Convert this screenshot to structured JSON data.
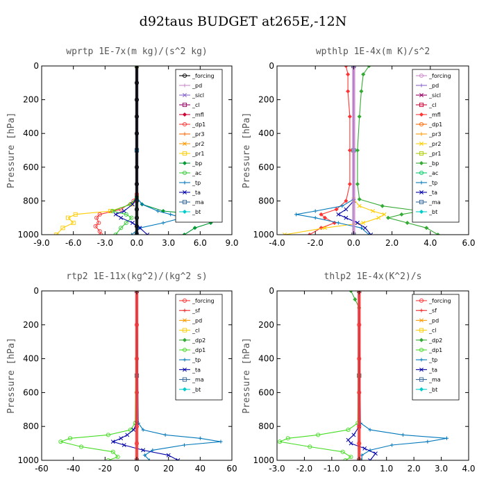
{
  "figure": {
    "title": "d92taus  BUDGET at265E,-12N"
  },
  "chart_data": [
    {
      "type": "line",
      "title": "wprtp  1E-7x(m kg)/(s^2 kg)",
      "ylabel": "Pressure [hPa]",
      "xlim": [
        -9,
        9
      ],
      "ylim": [
        1000,
        0
      ],
      "y_reversed": true,
      "xticks": [
        "-9.0",
        "-6.0",
        "-3.0",
        "0.0",
        "3.0",
        "6.0",
        "9.0"
      ],
      "yticks": [
        "0",
        "200",
        "400",
        "600",
        "800",
        "1000"
      ],
      "legend_placement": "top-right",
      "series": [
        {
          "name": "_forcing",
          "color": "#000000",
          "y": [
            0,
            100,
            200,
            300,
            400,
            500,
            600,
            700,
            800,
            850,
            900,
            950,
            1000
          ],
          "x": [
            0,
            0,
            0,
            0,
            0,
            0,
            0,
            0,
            0,
            0,
            0,
            0,
            0
          ]
        },
        {
          "name": "_pd",
          "color": "#cc88cc",
          "y": [
            0,
            500,
            1000
          ],
          "x": [
            0,
            0,
            0
          ]
        },
        {
          "name": "_sicl",
          "color": "#8866cc",
          "y": [
            0,
            500,
            1000
          ],
          "x": [
            0,
            0,
            0
          ]
        },
        {
          "name": "_cl",
          "color": "#990066",
          "y": [
            0,
            500,
            1000
          ],
          "x": [
            0,
            0,
            0
          ]
        },
        {
          "name": "_mfl",
          "color": "#cc0033",
          "y": [
            0,
            500,
            1000
          ],
          "x": [
            0,
            0,
            0
          ]
        },
        {
          "name": "_dp1",
          "color": "#ff3333",
          "y": [
            0,
            760,
            800,
            850,
            880,
            900,
            930,
            950,
            980,
            1000
          ],
          "x": [
            0,
            0,
            -0.3,
            -1.5,
            -3.5,
            -3.8,
            -3.6,
            -3.9,
            -3.5,
            -3.4
          ]
        },
        {
          "name": "_pr3",
          "color": "#ff6600",
          "y": [
            0,
            500,
            1000
          ],
          "x": [
            0,
            0,
            0
          ]
        },
        {
          "name": "_pr2",
          "color": "#ff9900",
          "y": [
            0,
            500,
            1000
          ],
          "x": [
            0,
            0,
            0
          ]
        },
        {
          "name": "_pr1",
          "color": "#ffcc00",
          "y": [
            0,
            780,
            820,
            860,
            880,
            900,
            930,
            960,
            1000
          ],
          "x": [
            0,
            0,
            -0.5,
            -2.5,
            -5.8,
            -6.5,
            -6.0,
            -7.0,
            -7.6
          ]
        },
        {
          "name": "_bp",
          "color": "#009933",
          "y": [
            0,
            780,
            820,
            860,
            880,
            900,
            930,
            960,
            1000
          ],
          "x": [
            0,
            0,
            0.5,
            2.5,
            6.0,
            7.8,
            7.0,
            5.5,
            4.5
          ]
        },
        {
          "name": "_ac",
          "color": "#33cc33",
          "y": [
            0,
            780,
            820,
            860,
            880,
            900,
            930,
            960,
            1000
          ],
          "x": [
            0,
            0,
            -0.6,
            -2.3,
            -1.0,
            -0.5,
            -1.0,
            -1.5,
            -2.0
          ]
        },
        {
          "name": "_tp",
          "color": "#0077bb",
          "y": [
            0,
            780,
            820,
            860,
            880,
            900,
            930,
            960,
            1000
          ],
          "x": [
            0,
            0,
            0.5,
            2.0,
            3.2,
            4.3,
            2.5,
            0.3,
            -0.5
          ]
        },
        {
          "name": "_ta",
          "color": "#0000aa",
          "y": [
            0,
            780,
            820,
            860,
            880,
            900,
            930,
            960,
            1000
          ],
          "x": [
            0,
            0,
            -0.4,
            -1.2,
            -2.0,
            -1.5,
            -0.4,
            0.3,
            1.0
          ]
        },
        {
          "name": "_ma",
          "color": "#336699",
          "y": [
            0,
            500,
            1000
          ],
          "x": [
            0,
            0,
            0
          ]
        },
        {
          "name": "_bt",
          "color": "#00cccc",
          "y": [
            0,
            500,
            1000
          ],
          "x": [
            0,
            0,
            0
          ]
        }
      ]
    },
    {
      "type": "line",
      "title": "wpthlp  1E-4x(m K)/s^2",
      "ylabel": "Pressure [hPa]",
      "xlim": [
        -4,
        6
      ],
      "ylim": [
        1000,
        0
      ],
      "y_reversed": true,
      "xticks": [
        "-4.0",
        "-2.0",
        "0.0",
        "2.0",
        "4.0",
        "6.0"
      ],
      "yticks": [
        "0",
        "200",
        "400",
        "600",
        "800",
        "1000"
      ],
      "legend_placement": "top-right",
      "series": [
        {
          "name": "_forcing",
          "color": "#cc88cc",
          "y": [
            0,
            500,
            1000
          ],
          "x": [
            0,
            0,
            0
          ]
        },
        {
          "name": "_pd",
          "color": "#8866cc",
          "y": [
            0,
            500,
            1000
          ],
          "x": [
            0,
            0,
            0
          ]
        },
        {
          "name": "_sicl",
          "color": "#990066",
          "y": [
            0,
            500,
            1000
          ],
          "x": [
            0,
            0,
            0
          ]
        },
        {
          "name": "_cl",
          "color": "#cc0033",
          "y": [
            0,
            500,
            1000
          ],
          "x": [
            0,
            0,
            0
          ]
        },
        {
          "name": "_mfl",
          "color": "#ff3333",
          "y": [
            0,
            50,
            150,
            300,
            500,
            700,
            800,
            850,
            880,
            900,
            930,
            960,
            1000
          ],
          "x": [
            -0.4,
            -0.3,
            -0.3,
            -0.2,
            -0.2,
            -0.2,
            -0.4,
            -0.9,
            -1.7,
            -1.5,
            -1.0,
            -1.7,
            -2.3
          ]
        },
        {
          "name": "_dp1",
          "color": "#ff6600",
          "y": [
            0,
            500,
            1000
          ],
          "x": [
            0,
            0,
            0
          ]
        },
        {
          "name": "_pr3",
          "color": "#ff9900",
          "y": [
            0,
            500,
            1000
          ],
          "x": [
            0,
            0,
            0
          ]
        },
        {
          "name": "_pr2",
          "color": "#ffcc00",
          "y": [
            0,
            790,
            830,
            860,
            880,
            900,
            930,
            960,
            1000
          ],
          "x": [
            0,
            0,
            0.3,
            1.0,
            1.6,
            1.3,
            0.5,
            -1.5,
            -3.6
          ]
        },
        {
          "name": "_pr1",
          "color": "#aacc00",
          "y": [
            0,
            500,
            1000
          ],
          "x": [
            0,
            0,
            0
          ]
        },
        {
          "name": "_bp",
          "color": "#33aa33",
          "y": [
            0,
            50,
            150,
            300,
            500,
            700,
            790,
            830,
            860,
            880,
            900,
            930,
            960,
            1000
          ],
          "x": [
            0.8,
            0.5,
            0.4,
            0.3,
            0.2,
            0.2,
            0.3,
            1.5,
            3.5,
            2.5,
            1.8,
            2.8,
            3.8,
            4.4
          ]
        },
        {
          "name": "_ac",
          "color": "#00cc66",
          "y": [
            0,
            500,
            1000
          ],
          "x": [
            0,
            0,
            0
          ]
        },
        {
          "name": "_tp",
          "color": "#0077bb",
          "y": [
            0,
            790,
            830,
            860,
            880,
            900,
            930,
            960,
            1000
          ],
          "x": [
            0,
            0,
            -0.6,
            -2.0,
            -3.0,
            -2.0,
            -0.8,
            0.4,
            0.8
          ]
        },
        {
          "name": "_ta",
          "color": "#0000aa",
          "y": [
            0,
            800,
            850,
            880,
            900,
            930,
            960,
            1000
          ],
          "x": [
            0,
            0,
            -0.4,
            -0.8,
            -0.4,
            0.2,
            0.6,
            0.9
          ]
        },
        {
          "name": "_ma",
          "color": "#336699",
          "y": [
            0,
            500,
            1000
          ],
          "x": [
            0,
            0,
            0
          ]
        },
        {
          "name": "_bt",
          "color": "#00cccc",
          "y": [
            0,
            500,
            1000
          ],
          "x": [
            0,
            0,
            0
          ]
        }
      ]
    },
    {
      "type": "line",
      "title": "rtp2  1E-11x(kg^2)/(kg^2 s)",
      "ylabel": "Pressure [hPa]",
      "xlim": [
        -60,
        60
      ],
      "ylim": [
        1000,
        0
      ],
      "y_reversed": true,
      "xticks": [
        "-60",
        "-40",
        "-20",
        "0",
        "20",
        "40",
        "60"
      ],
      "yticks": [
        "0",
        "200",
        "400",
        "600",
        "800",
        "1000"
      ],
      "legend_placement": "top-right",
      "series": [
        {
          "name": "_forcing",
          "color": "#ff3333",
          "y": [
            0,
            200,
            400,
            600,
            800,
            900,
            1000
          ],
          "x": [
            0,
            0,
            0,
            0,
            0,
            0,
            0
          ]
        },
        {
          "name": "_sf",
          "color": "#ee2222",
          "y": [
            0,
            500,
            1000
          ],
          "x": [
            0,
            0,
            0
          ]
        },
        {
          "name": "_pd",
          "color": "#ff9900",
          "y": [
            0,
            500,
            1000
          ],
          "x": [
            0,
            0,
            0
          ]
        },
        {
          "name": "_cl",
          "color": "#ffcc00",
          "y": [
            0,
            500,
            1000
          ],
          "x": [
            0,
            0,
            0
          ]
        },
        {
          "name": "_dp2",
          "color": "#33aa33",
          "y": [
            0,
            500,
            1000
          ],
          "x": [
            0,
            0,
            0
          ]
        },
        {
          "name": "_dp1",
          "color": "#44dd22",
          "y": [
            0,
            780,
            820,
            850,
            870,
            890,
            920,
            950,
            980,
            1000
          ],
          "x": [
            0,
            -1,
            -4,
            -18,
            -42,
            -48,
            -35,
            -15,
            -12,
            -18
          ]
        },
        {
          "name": "_tp",
          "color": "#0077bb",
          "y": [
            0,
            780,
            820,
            850,
            870,
            890,
            910,
            940,
            970,
            1000
          ],
          "x": [
            0,
            1,
            4,
            18,
            40,
            53,
            30,
            10,
            5,
            8
          ]
        },
        {
          "name": "_ta",
          "color": "#0000aa",
          "y": [
            0,
            780,
            820,
            850,
            870,
            890,
            910,
            940,
            970,
            1000
          ],
          "x": [
            0,
            0,
            -2,
            -6,
            -10,
            -15,
            -8,
            4,
            20,
            26
          ]
        },
        {
          "name": "_ma",
          "color": "#336699",
          "y": [
            0,
            500,
            1000
          ],
          "x": [
            0,
            0,
            0
          ]
        },
        {
          "name": "_bt",
          "color": "#00cccc",
          "y": [
            0,
            500,
            1000
          ],
          "x": [
            0,
            0,
            0
          ]
        }
      ]
    },
    {
      "type": "line",
      "title": "thlp2  1E-4x(K^2)/s",
      "ylabel": "Pressure [hPa]",
      "xlim": [
        -3,
        4
      ],
      "ylim": [
        1000,
        0
      ],
      "y_reversed": true,
      "xticks": [
        "-3.0",
        "-2.0",
        "-1.0",
        "0.0",
        "1.0",
        "2.0",
        "3.0",
        "4.0"
      ],
      "yticks": [
        "0",
        "200",
        "400",
        "600",
        "800",
        "1000"
      ],
      "legend_placement": "top-right",
      "series": [
        {
          "name": "_forcing",
          "color": "#ff3333",
          "y": [
            0,
            200,
            400,
            600,
            800,
            900,
            1000
          ],
          "x": [
            0,
            0,
            0,
            0,
            0,
            0,
            0
          ]
        },
        {
          "name": "_sf",
          "color": "#ee2222",
          "y": [
            0,
            500,
            1000
          ],
          "x": [
            0,
            0,
            0
          ]
        },
        {
          "name": "_pd",
          "color": "#ff9900",
          "y": [
            0,
            500,
            1000
          ],
          "x": [
            0,
            0,
            0
          ]
        },
        {
          "name": "_cl",
          "color": "#ffcc00",
          "y": [
            0,
            500,
            1000
          ],
          "x": [
            0,
            0,
            0
          ]
        },
        {
          "name": "_dp2",
          "color": "#33aa33",
          "y": [
            0,
            50,
            100,
            500,
            1000
          ],
          "x": [
            -0.3,
            -0.15,
            0,
            0,
            0
          ]
        },
        {
          "name": "_dp1",
          "color": "#44dd22",
          "y": [
            0,
            780,
            820,
            850,
            870,
            890,
            920,
            950,
            980,
            1000
          ],
          "x": [
            0,
            -0.05,
            -0.4,
            -1.5,
            -2.6,
            -2.9,
            -1.8,
            -0.6,
            -0.3,
            -0.5
          ]
        },
        {
          "name": "_tp",
          "color": "#0077bb",
          "y": [
            0,
            780,
            820,
            850,
            870,
            890,
            910,
            940,
            970,
            1000
          ],
          "x": [
            0,
            0.05,
            0.4,
            1.6,
            3.2,
            2.5,
            1.2,
            0.4,
            0.1,
            0.1
          ]
        },
        {
          "name": "_ta",
          "color": "#0000aa",
          "y": [
            0,
            800,
            850,
            880,
            900,
            930,
            960,
            1000
          ],
          "x": [
            0,
            0,
            -0.2,
            -0.4,
            -0.3,
            0.2,
            0.6,
            0.4
          ]
        },
        {
          "name": "_ma",
          "color": "#336699",
          "y": [
            0,
            500,
            1000
          ],
          "x": [
            0,
            0,
            0
          ]
        },
        {
          "name": "_bt",
          "color": "#00cccc",
          "y": [
            0,
            500,
            1000
          ],
          "x": [
            0,
            0,
            0
          ]
        }
      ]
    }
  ]
}
